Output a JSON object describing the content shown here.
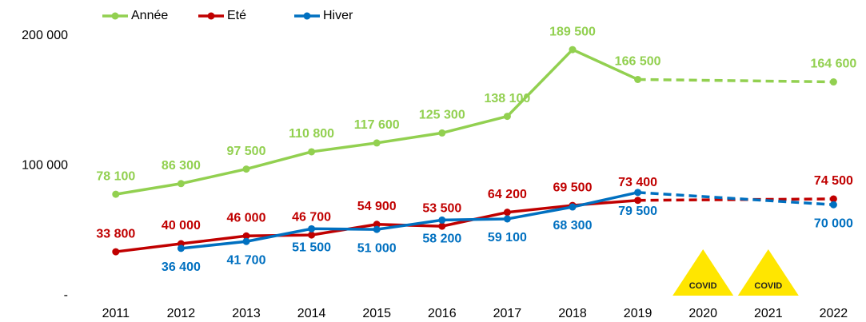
{
  "chart_data": {
    "type": "line",
    "categories": [
      "2011",
      "2012",
      "2013",
      "2014",
      "2015",
      "2016",
      "2017",
      "2018",
      "2019",
      "2020",
      "2021",
      "2022"
    ],
    "series": [
      {
        "name": "Année",
        "color": "#92d050",
        "values": [
          78100,
          86300,
          97500,
          110800,
          117600,
          125300,
          138100,
          189500,
          166500,
          null,
          null,
          164600
        ],
        "value_labels": [
          "78 100",
          "86 300",
          "97 500",
          "110 800",
          "117 600",
          "125 300",
          "138 100",
          "189 500",
          "166 500",
          null,
          null,
          "164 600"
        ]
      },
      {
        "name": "Eté",
        "color": "#c00000",
        "values": [
          33800,
          40000,
          46000,
          46700,
          54900,
          53500,
          64200,
          69500,
          73400,
          null,
          null,
          74500
        ],
        "value_labels": [
          "33 800",
          "40 000",
          "46 000",
          "46 700",
          "54 900",
          "53 500",
          "64 200",
          "69 500",
          "73 400",
          null,
          null,
          "74 500"
        ]
      },
      {
        "name": "Hiver",
        "color": "#0070c0",
        "values": [
          null,
          36400,
          41700,
          51500,
          51000,
          58200,
          59100,
          68300,
          79500,
          null,
          null,
          70000
        ],
        "value_labels": [
          null,
          "36 400",
          "41 700",
          "51 500",
          "51 000",
          "58 200",
          "59 100",
          "68 300",
          "79 500",
          null,
          null,
          "70 000"
        ]
      }
    ],
    "ylim": [
      0,
      200000
    ],
    "yticks": [
      {
        "value": 0,
        "label": "-"
      },
      {
        "value": 100000,
        "label": "100 000"
      },
      {
        "value": 200000,
        "label": "200 000"
      }
    ],
    "grid": false,
    "legend": "top-left",
    "annotations": [
      {
        "text": "COVID",
        "category": "2020"
      },
      {
        "text": "COVID",
        "category": "2021"
      }
    ]
  }
}
